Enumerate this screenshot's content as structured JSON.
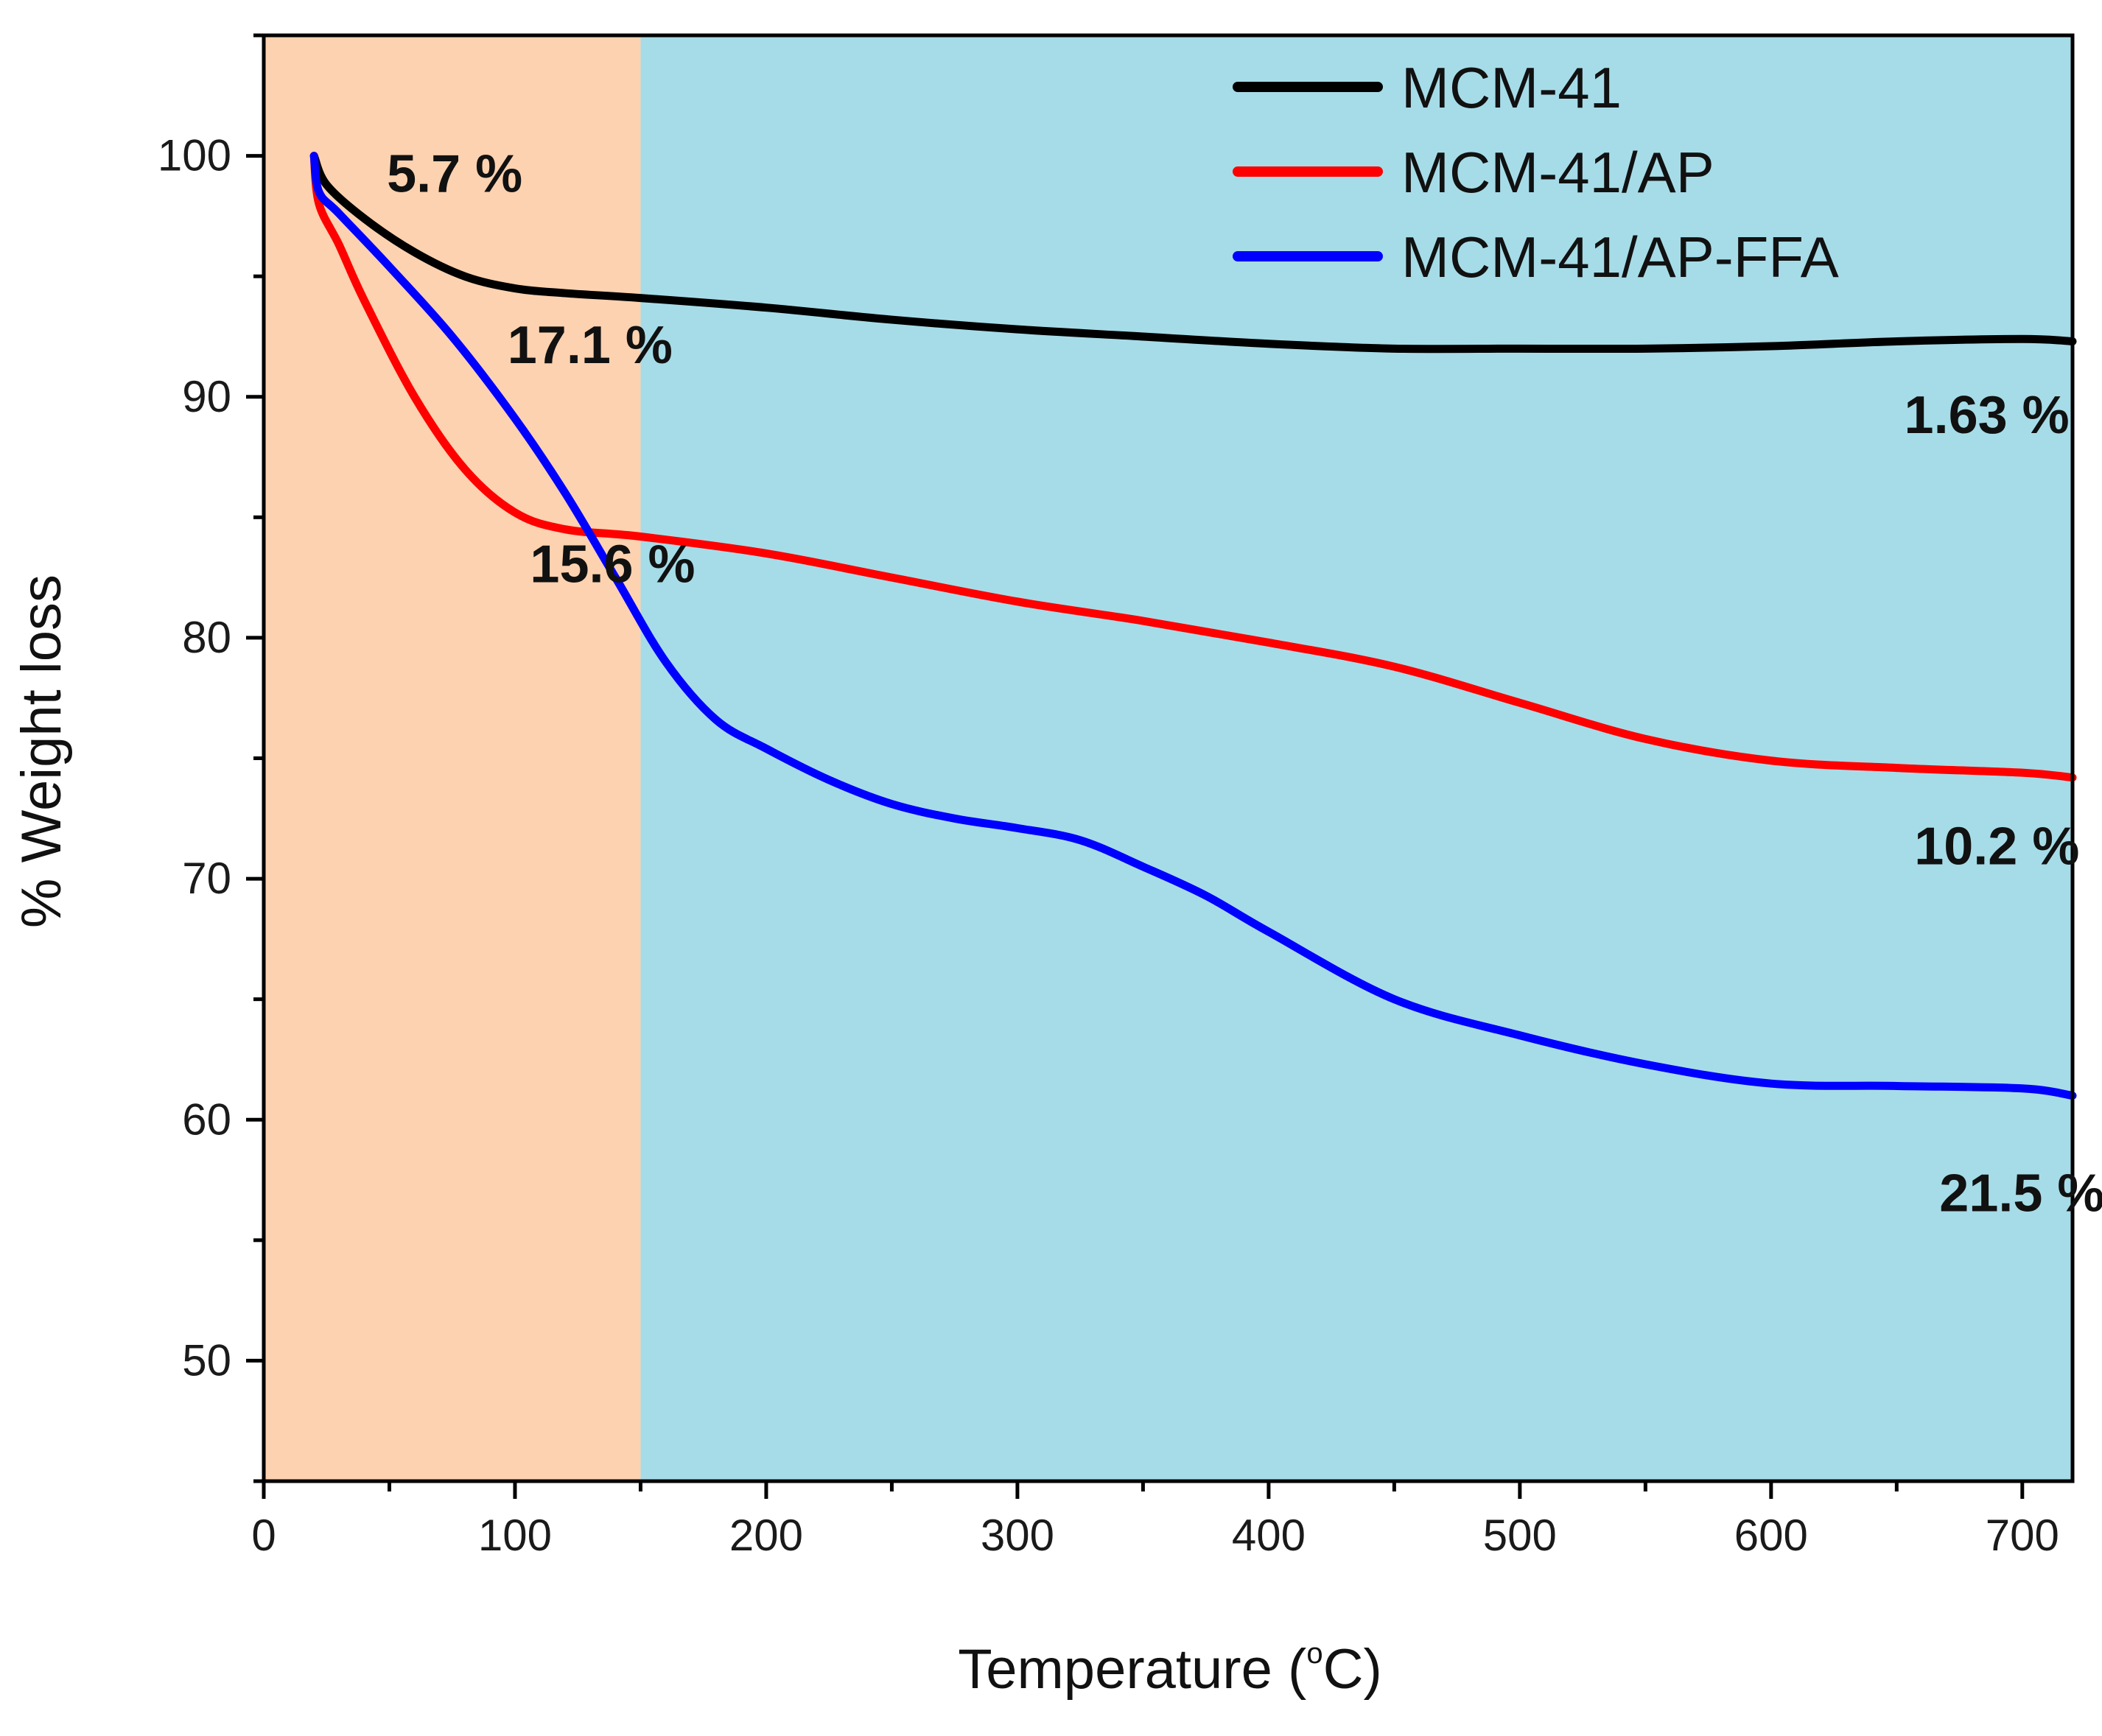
{
  "chart_data": {
    "type": "line",
    "title": "",
    "xlabel": "Temperature (°C)",
    "xlabel_main": "Temperature (",
    "xlabel_degree": "o",
    "xlabel_unit": "C)",
    "ylabel": "% Weight loss",
    "xlim": [
      0,
      720
    ],
    "ylim": [
      45,
      105
    ],
    "xticks": [
      "0",
      "100",
      "200",
      "300",
      "400",
      "500",
      "600",
      "700"
    ],
    "yticks": [
      "50",
      "60",
      "70",
      "80",
      "90",
      "100"
    ],
    "grid": false,
    "legend_position": "top-right",
    "regions": [
      {
        "x_range": [
          0,
          150
        ],
        "color": "#fcd2b0"
      },
      {
        "x_range": [
          150,
          720
        ],
        "color": "#a6dce8"
      }
    ],
    "series": [
      {
        "name": "MCM-41",
        "color": "#000000",
        "x": [
          20,
          25,
          40,
          60,
          80,
          100,
          120,
          150,
          200,
          250,
          300,
          350,
          400,
          450,
          500,
          550,
          600,
          650,
          700,
          720
        ],
        "y": [
          100,
          98.8,
          97.4,
          96.0,
          95.0,
          94.5,
          94.3,
          94.1,
          93.7,
          93.2,
          92.8,
          92.5,
          92.2,
          92.0,
          92.0,
          92.0,
          92.1,
          92.3,
          92.4,
          92.3
        ]
      },
      {
        "name": "MCM-41/AP",
        "color": "#ff0000",
        "x": [
          20,
          22,
          30,
          40,
          60,
          80,
          100,
          120,
          150,
          200,
          250,
          300,
          350,
          400,
          450,
          500,
          550,
          600,
          650,
          700,
          720
        ],
        "y": [
          100,
          98.0,
          96.3,
          94.0,
          90.0,
          87.0,
          85.2,
          84.5,
          84.2,
          83.5,
          82.5,
          81.5,
          80.7,
          79.8,
          78.8,
          77.3,
          75.8,
          74.9,
          74.6,
          74.4,
          74.2
        ]
      },
      {
        "name": "MCM-41/AP-FFA",
        "color": "#0000ff",
        "x": [
          20,
          22,
          30,
          50,
          75,
          100,
          120,
          140,
          160,
          180,
          200,
          225,
          250,
          275,
          300,
          325,
          350,
          375,
          400,
          450,
          500,
          550,
          600,
          650,
          700,
          720
        ],
        "y": [
          100,
          98.5,
          97.6,
          95.4,
          92.5,
          89.1,
          86.0,
          82.5,
          79.0,
          76.6,
          75.4,
          74.1,
          73.1,
          72.5,
          72.1,
          71.6,
          70.5,
          69.3,
          67.8,
          65.0,
          63.5,
          62.3,
          61.5,
          61.4,
          61.3,
          61.0
        ]
      }
    ],
    "annotations": [
      {
        "text": "5.7 %",
        "x": 49,
        "y": 98.5
      },
      {
        "text": "17.1 %",
        "x": 97,
        "y": 91.4
      },
      {
        "text": "15.6 %",
        "x": 106,
        "y": 82.3
      },
      {
        "text": "1.63 %",
        "x": 653,
        "y": 88.5
      },
      {
        "text": "10.2 %",
        "x": 657,
        "y": 70.6
      },
      {
        "text": "21.5 %",
        "x": 667,
        "y": 56.2
      }
    ]
  }
}
